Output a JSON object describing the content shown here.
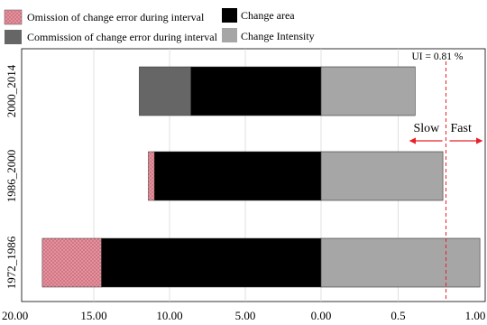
{
  "chart_data": {
    "type": "bar",
    "orientation": "horizontal",
    "categories": [
      "2000_2014",
      "1986_2000",
      "1972_1986"
    ],
    "left_axis": {
      "ticks": [
        "20.00",
        "15.00",
        "10.00",
        "5.00",
        "0.00"
      ],
      "range": [
        20,
        0
      ]
    },
    "right_axis": {
      "ticks": [
        "0.5",
        "1.00"
      ],
      "range": [
        0,
        1.0
      ]
    },
    "series": [
      {
        "name": "Omission of change error during interval",
        "values": [
          0,
          0.4,
          3.9
        ],
        "side": "left",
        "color": "#e8919e",
        "pattern": "dots"
      },
      {
        "name": "Commission of change error during interval",
        "values": [
          3.4,
          0,
          0
        ],
        "side": "left",
        "color": "#666666"
      },
      {
        "name": "Change area",
        "values": [
          8.6,
          11.0,
          14.5
        ],
        "side": "left",
        "color": "#000000"
      },
      {
        "name": "Change Intensity",
        "values": [
          0.61,
          0.79,
          1.03
        ],
        "side": "right",
        "color": "#a6a6a6"
      }
    ],
    "uniform_intensity": {
      "label": "UI = 0.81 %",
      "value": 0.81,
      "color": "#e8202a"
    },
    "annotations": {
      "slow": "Slow",
      "fast": "Fast"
    },
    "grid": "vertical",
    "legend_position": "top"
  }
}
